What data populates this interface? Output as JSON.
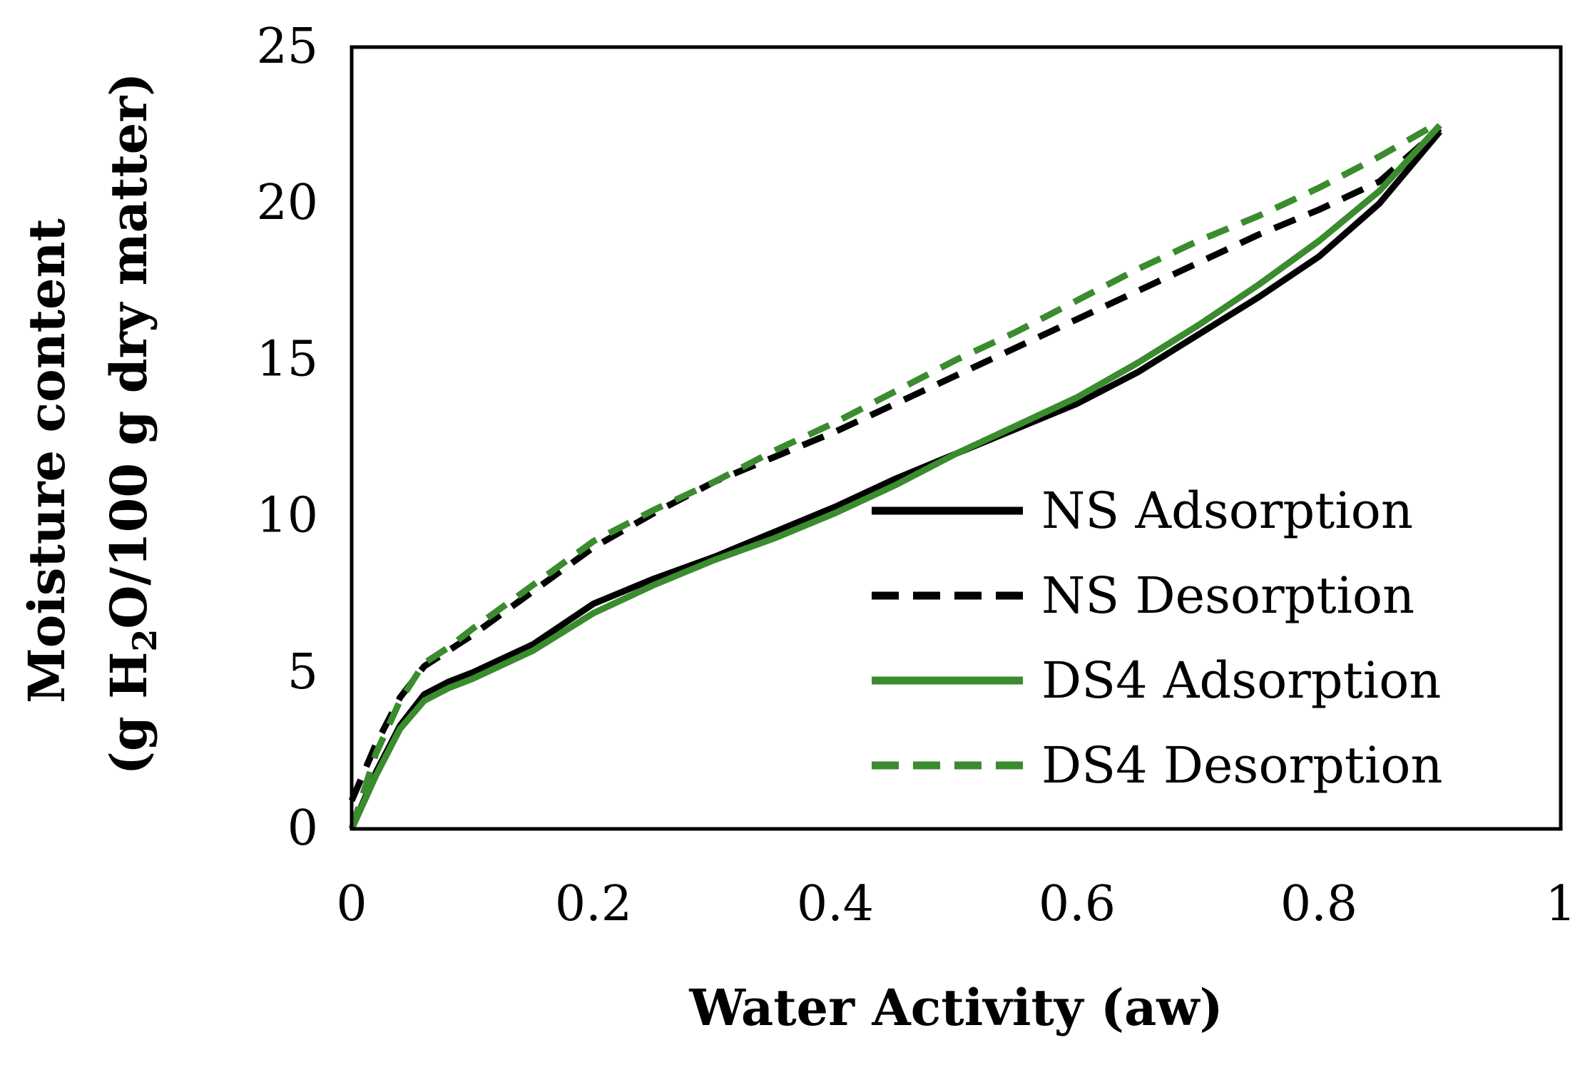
{
  "chart_data": {
    "type": "line",
    "title": "",
    "xlabel": "Water Activity (aw)",
    "ylabel": "Moisture content",
    "ylabel_line2_pre": "(g H",
    "ylabel_line2_sub": "2",
    "ylabel_line2_post": "O/100 g dry matter)",
    "xlim": [
      0,
      1
    ],
    "ylim": [
      0,
      25
    ],
    "x_ticks": [
      "0",
      "0.2",
      "0.4",
      "0.6",
      "0.8",
      "1"
    ],
    "y_ticks": [
      "0",
      "5",
      "10",
      "15",
      "20",
      "25"
    ],
    "grid": false,
    "legend_position": "right",
    "series": [
      {
        "name": "NS Adsorption",
        "color": "#000000",
        "dash": "solid",
        "points": [
          [
            0,
            0
          ],
          [
            0.02,
            1.8
          ],
          [
            0.04,
            3.3
          ],
          [
            0.06,
            4.3
          ],
          [
            0.08,
            4.7
          ],
          [
            0.1,
            5.0
          ],
          [
            0.15,
            5.9
          ],
          [
            0.2,
            7.2
          ],
          [
            0.25,
            8.0
          ],
          [
            0.3,
            8.7
          ],
          [
            0.35,
            9.5
          ],
          [
            0.4,
            10.3
          ],
          [
            0.45,
            11.2
          ],
          [
            0.5,
            12.0
          ],
          [
            0.55,
            12.8
          ],
          [
            0.6,
            13.6
          ],
          [
            0.65,
            14.6
          ],
          [
            0.7,
            15.8
          ],
          [
            0.75,
            17.0
          ],
          [
            0.8,
            18.3
          ],
          [
            0.85,
            20.0
          ],
          [
            0.9,
            22.3
          ]
        ]
      },
      {
        "name": "NS Desorption",
        "color": "#000000",
        "dash": "dashed",
        "points": [
          [
            0,
            0.9
          ],
          [
            0.02,
            2.7
          ],
          [
            0.04,
            4.2
          ],
          [
            0.06,
            5.2
          ],
          [
            0.08,
            5.7
          ],
          [
            0.1,
            6.2
          ],
          [
            0.15,
            7.6
          ],
          [
            0.2,
            9.0
          ],
          [
            0.25,
            10.1
          ],
          [
            0.3,
            11.1
          ],
          [
            0.35,
            11.9
          ],
          [
            0.4,
            12.7
          ],
          [
            0.45,
            13.6
          ],
          [
            0.5,
            14.5
          ],
          [
            0.55,
            15.4
          ],
          [
            0.6,
            16.3
          ],
          [
            0.65,
            17.2
          ],
          [
            0.7,
            18.1
          ],
          [
            0.75,
            19.0
          ],
          [
            0.8,
            19.8
          ],
          [
            0.85,
            20.7
          ],
          [
            0.9,
            22.4
          ]
        ]
      },
      {
        "name": "DS4 Adsorption",
        "color": "#3b8b2f",
        "dash": "solid",
        "points": [
          [
            0,
            0
          ],
          [
            0.02,
            1.7
          ],
          [
            0.04,
            3.2
          ],
          [
            0.06,
            4.1
          ],
          [
            0.08,
            4.5
          ],
          [
            0.1,
            4.8
          ],
          [
            0.15,
            5.7
          ],
          [
            0.2,
            6.9
          ],
          [
            0.25,
            7.8
          ],
          [
            0.3,
            8.6
          ],
          [
            0.35,
            9.3
          ],
          [
            0.4,
            10.1
          ],
          [
            0.45,
            11.0
          ],
          [
            0.5,
            12.0
          ],
          [
            0.55,
            12.9
          ],
          [
            0.6,
            13.8
          ],
          [
            0.65,
            14.9
          ],
          [
            0.7,
            16.1
          ],
          [
            0.75,
            17.4
          ],
          [
            0.8,
            18.8
          ],
          [
            0.85,
            20.4
          ],
          [
            0.9,
            22.5
          ]
        ]
      },
      {
        "name": "DS4 Desorption",
        "color": "#3b8b2f",
        "dash": "dashed",
        "points": [
          [
            0,
            0
          ],
          [
            0.02,
            2.4
          ],
          [
            0.04,
            4.1
          ],
          [
            0.06,
            5.3
          ],
          [
            0.08,
            5.8
          ],
          [
            0.1,
            6.4
          ],
          [
            0.15,
            7.8
          ],
          [
            0.2,
            9.2
          ],
          [
            0.25,
            10.2
          ],
          [
            0.3,
            11.1
          ],
          [
            0.35,
            12.1
          ],
          [
            0.4,
            13.0
          ],
          [
            0.45,
            14.0
          ],
          [
            0.5,
            15.0
          ],
          [
            0.55,
            15.9
          ],
          [
            0.6,
            16.9
          ],
          [
            0.65,
            17.9
          ],
          [
            0.7,
            18.8
          ],
          [
            0.75,
            19.6
          ],
          [
            0.8,
            20.5
          ],
          [
            0.85,
            21.5
          ],
          [
            0.9,
            22.6
          ]
        ]
      }
    ]
  }
}
